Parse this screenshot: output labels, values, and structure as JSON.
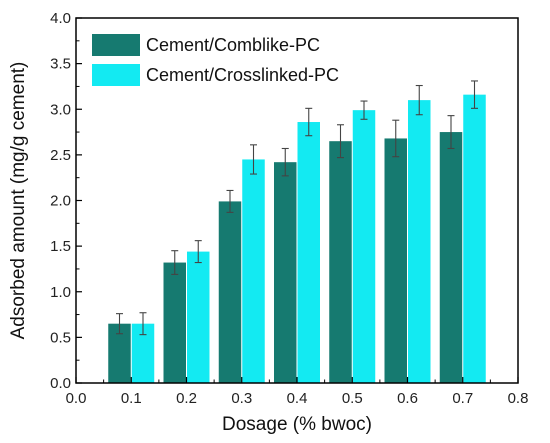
{
  "chart_data": {
    "type": "bar",
    "xlabel": "Dosage (% bwoc)",
    "ylabel": "Adsorbed amount (mg/g cement)",
    "xlim": [
      0.0,
      0.8
    ],
    "ylim": [
      0.0,
      4.0
    ],
    "xticks": [
      "0.0",
      "0.1",
      "0.2",
      "0.3",
      "0.4",
      "0.5",
      "0.6",
      "0.7",
      "0.8"
    ],
    "yticks": [
      "0.0",
      "0.5",
      "1.0",
      "1.5",
      "2.0",
      "2.5",
      "3.0",
      "3.5",
      "4.0"
    ],
    "categories": [
      0.1,
      0.2,
      0.3,
      0.4,
      0.5,
      0.6,
      0.7
    ],
    "series": [
      {
        "name": "Cement/Comblike-PC",
        "color": "#167a70",
        "values": [
          0.65,
          1.32,
          1.99,
          2.42,
          2.65,
          2.68,
          2.75
        ],
        "errors": [
          0.11,
          0.13,
          0.12,
          0.15,
          0.18,
          0.2,
          0.18
        ]
      },
      {
        "name": "Cement/Crosslinked-PC",
        "color": "#13eaf2",
        "values": [
          0.65,
          1.44,
          2.45,
          2.86,
          2.99,
          3.1,
          3.16
        ],
        "errors": [
          0.12,
          0.12,
          0.16,
          0.15,
          0.1,
          0.16,
          0.15
        ]
      }
    ],
    "legend_position": "top-left",
    "grid": false
  }
}
